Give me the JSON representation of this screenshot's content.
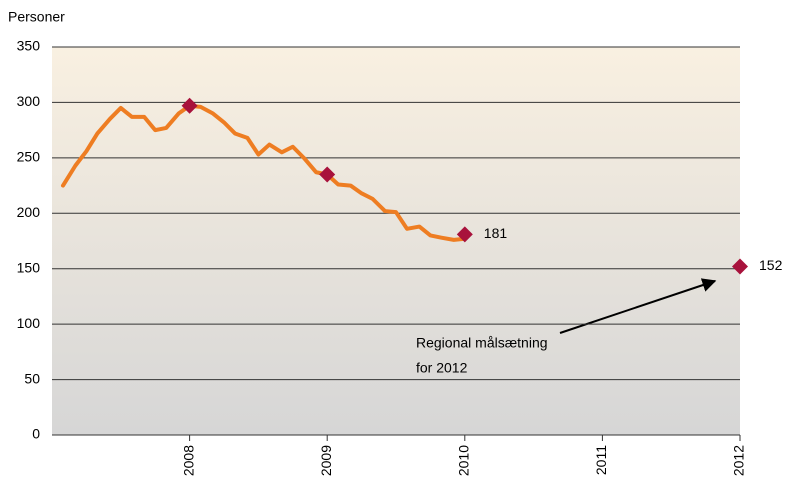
{
  "chart_data": {
    "type": "line",
    "y_label": "Personer",
    "xlim": [
      2007,
      2012
    ],
    "xticks": [
      2008,
      2009,
      2010,
      2011,
      2012
    ],
    "ylim": [
      0,
      350
    ],
    "yticks": [
      0,
      50,
      100,
      150,
      200,
      250,
      300,
      350
    ],
    "grid": true,
    "series": [
      {
        "color": "#ee7d22",
        "x": [
          2007.08,
          2007.17,
          2007.25,
          2007.33,
          2007.42,
          2007.5,
          2007.58,
          2007.67,
          2007.75,
          2007.83,
          2007.92,
          2008.0,
          2008.08,
          2008.17,
          2008.25,
          2008.33,
          2008.42,
          2008.5,
          2008.58,
          2008.67,
          2008.75,
          2008.83,
          2008.92,
          2009.0,
          2009.08,
          2009.17,
          2009.25,
          2009.33,
          2009.42,
          2009.5,
          2009.58,
          2009.67,
          2009.75,
          2009.83,
          2009.92,
          2010.0
        ],
        "values": [
          225,
          243,
          256,
          272,
          285,
          295,
          287,
          287,
          275,
          277,
          290,
          297,
          296,
          290,
          282,
          272,
          268,
          253,
          262,
          255,
          260,
          250,
          237,
          235,
          226,
          225,
          218,
          213,
          202,
          201,
          186,
          188,
          180,
          178,
          176,
          177
        ]
      }
    ],
    "markers": {
      "color": "#a8123c",
      "x": [
        2008,
        2009
      ],
      "values": [
        297,
        235
      ]
    },
    "labeled_markers": {
      "color": "#a8123c",
      "x": [
        2010,
        2012
      ],
      "values": [
        181,
        152
      ]
    },
    "annotation": [
      "Regional målsætning",
      "for 2012"
    ]
  }
}
